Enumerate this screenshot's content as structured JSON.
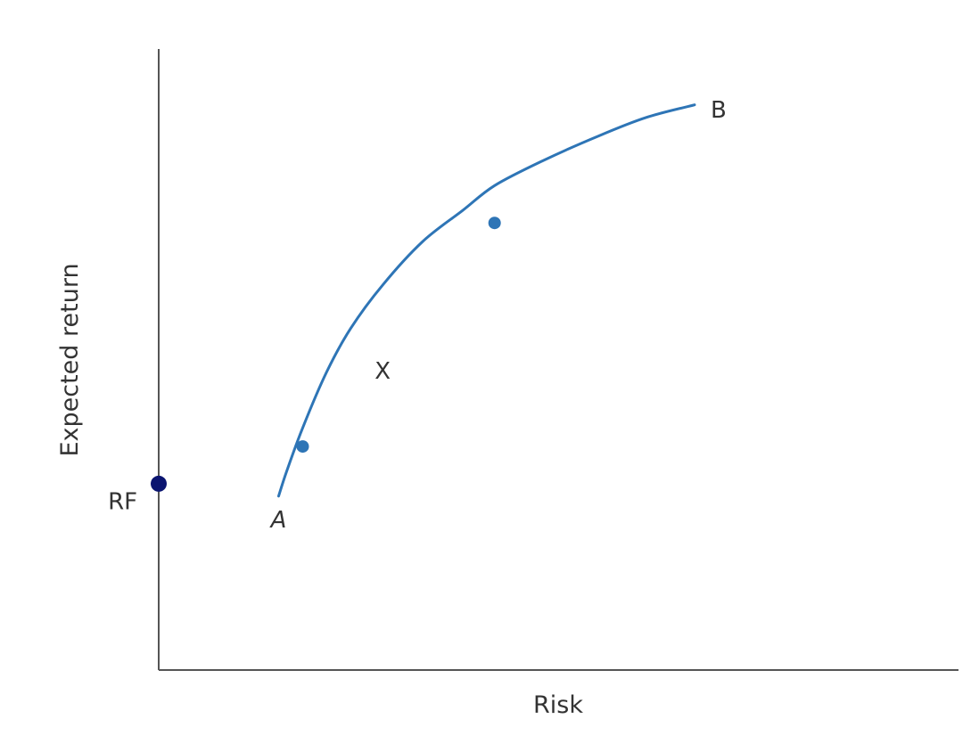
{
  "chart_data": {
    "type": "line",
    "xlabel": "Risk",
    "ylabel": "Expected return",
    "xlim": [
      0,
      10
    ],
    "ylim": [
      0,
      10
    ],
    "grid": false,
    "ticks": false,
    "series": [
      {
        "color": "#2e75b6",
        "x": [
          1.5,
          1.6,
          1.8,
          2.1,
          2.4,
          2.8,
          3.3,
          3.8,
          4.2,
          4.8,
          5.5,
          6.1,
          6.7
        ],
        "y": [
          2.8,
          3.2,
          3.9,
          4.8,
          5.5,
          6.2,
          6.9,
          7.4,
          7.8,
          8.2,
          8.6,
          8.9,
          9.1
        ]
      }
    ],
    "markers": [
      {
        "name": "efficient-point-1",
        "x": 1.8,
        "y": 3.6,
        "color": "#2e75b6"
      },
      {
        "name": "efficient-point-2",
        "x": 4.2,
        "y": 7.2,
        "color": "#2e75b6"
      },
      {
        "name": "rf-point",
        "x": 0.0,
        "y": 3.0,
        "color": "#0a1470"
      }
    ],
    "labels": [
      {
        "name": "label-a",
        "text": "A",
        "x": 1.5,
        "y": 2.4,
        "italic": true
      },
      {
        "name": "label-b",
        "text": "B",
        "x": 7.0,
        "y": 9.0,
        "italic": false
      },
      {
        "name": "label-x",
        "text": "X",
        "x": 2.8,
        "y": 4.8,
        "italic": false
      },
      {
        "name": "label-rf",
        "text": "RF",
        "x": -0.45,
        "y": 2.7,
        "italic": false
      }
    ]
  }
}
